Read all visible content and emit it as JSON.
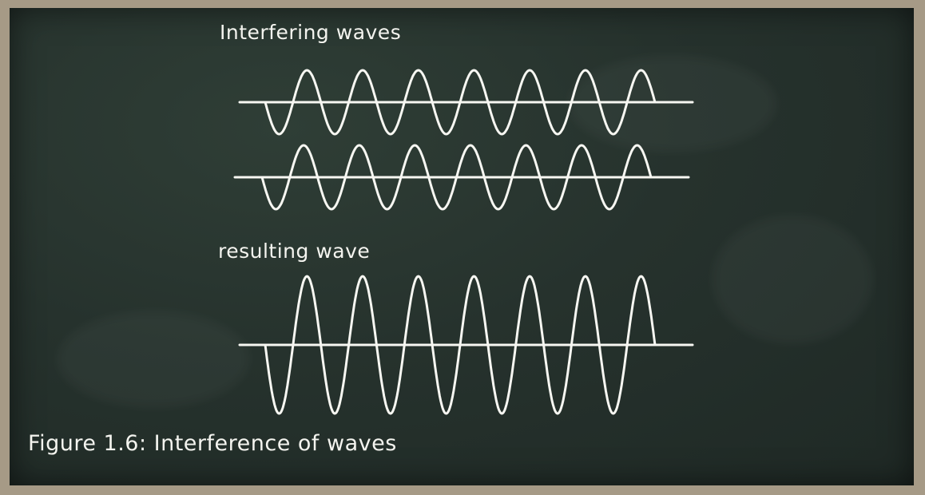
{
  "diagram": {
    "top_label": "Interfering waves",
    "result_label": "resulting wave",
    "caption": "Figure 1.6: Interference of waves",
    "colors": {
      "chalkboard": "#26322d",
      "chalk": "#f7f7f2",
      "frame": "#a69a86"
    },
    "waves": [
      {
        "id": "wave-a",
        "cycles": 7
      },
      {
        "id": "wave-b",
        "cycles": 7
      },
      {
        "id": "resulting-wave",
        "cycles": 7
      }
    ]
  }
}
